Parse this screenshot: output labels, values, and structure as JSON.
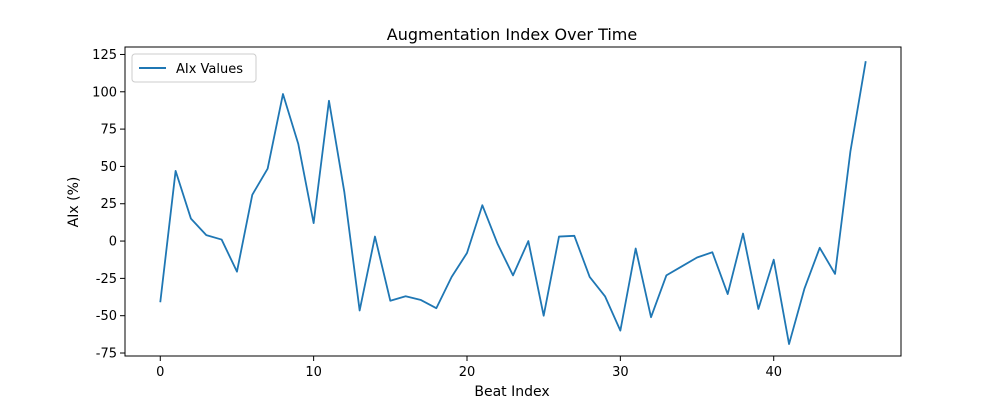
{
  "chart_data": {
    "type": "line",
    "title": "Augmentation Index Over Time",
    "xlabel": "Beat Index",
    "ylabel": "AIx (%)",
    "xlim": [
      -2.3,
      48.3
    ],
    "ylim": [
      -77,
      130
    ],
    "xticks": [
      0,
      10,
      20,
      30,
      40
    ],
    "yticks": [
      -75,
      -50,
      -25,
      0,
      25,
      50,
      75,
      100,
      125
    ],
    "grid": false,
    "legend_position": "top-left",
    "series": [
      {
        "name": "AIx Values",
        "color": "#1f77b4",
        "x": [
          0,
          1,
          2,
          3,
          4,
          5,
          6,
          7,
          8,
          9,
          10,
          11,
          12,
          13,
          14,
          15,
          16,
          17,
          18,
          19,
          20,
          21,
          22,
          23,
          24,
          25,
          26,
          27,
          28,
          29,
          30,
          31,
          32,
          33,
          34,
          35,
          36,
          37,
          38,
          39,
          40,
          41,
          42,
          43,
          44,
          45,
          46
        ],
        "values": [
          -41,
          47,
          15,
          4,
          1,
          -20.5,
          31,
          48.5,
          98.5,
          65,
          12,
          94,
          33,
          -46.5,
          3,
          -40,
          -37,
          -39.5,
          -45,
          -24,
          -8,
          24,
          -2,
          -23,
          0,
          -50,
          3,
          3.5,
          -24,
          -37,
          -60,
          -5,
          -51,
          -23,
          -17,
          -11,
          -7.5,
          -35.5,
          5,
          -45.5,
          -12.5,
          -69,
          -32,
          -4.5,
          -22,
          60,
          120.5
        ]
      }
    ]
  }
}
